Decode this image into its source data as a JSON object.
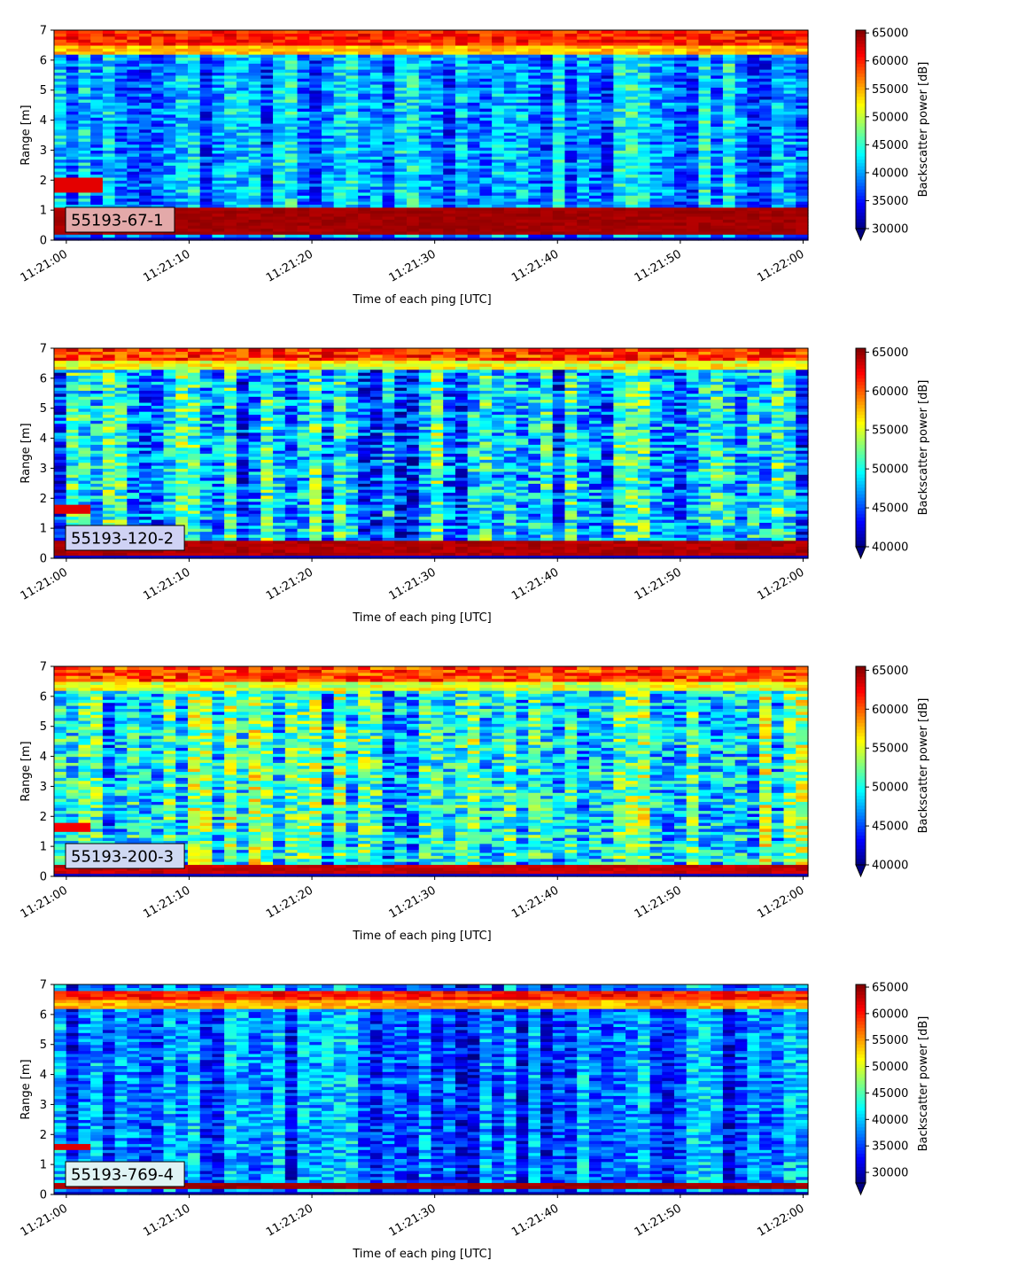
{
  "figure": {
    "title": ""
  },
  "chart_data": [
    {
      "type": "heatmap",
      "label": "55193-67-1",
      "label_color": "#e3a9a9",
      "xlabel": "Time of each ping [UTC]",
      "ylabel": "Range [m]",
      "xticks": [
        "11:21:00",
        "11:21:10",
        "11:21:20",
        "11:21:30",
        "11:21:40",
        "11:21:50",
        "11:22:00"
      ],
      "xlim": [
        "11:21:00",
        "11:22:00"
      ],
      "yticks": [
        0,
        1,
        2,
        3,
        4,
        5,
        6,
        7
      ],
      "ylim": [
        0,
        7
      ],
      "colorbar": {
        "label": "Backscatter power [dB]",
        "ticks": [
          30000,
          35000,
          40000,
          45000,
          50000,
          55000,
          60000,
          65000
        ],
        "min": 30000,
        "max": 65500,
        "extend": "min",
        "colormap": "jet"
      },
      "profile": {
        "background": 40000,
        "near_band": {
          "from": 0.2,
          "to": 1.1,
          "value": 65000
        },
        "far_band": {
          "from": 6.5,
          "to": 7.0,
          "value": 63000
        },
        "early_echo": {
          "from": 1.6,
          "to": 2.1,
          "value": 62000,
          "until": "11:21:02"
        }
      },
      "grid": false
    },
    {
      "type": "heatmap",
      "label": "55193-120-2",
      "label_color": "#cfd2f4",
      "xlabel": "Time of each ping [UTC]",
      "ylabel": "Range [m]",
      "xticks": [
        "11:21:00",
        "11:21:10",
        "11:21:20",
        "11:21:30",
        "11:21:40",
        "11:21:50",
        "11:22:00"
      ],
      "xlim": [
        "11:21:00",
        "11:22:00"
      ],
      "yticks": [
        0,
        1,
        2,
        3,
        4,
        5,
        6,
        7
      ],
      "ylim": [
        0,
        7
      ],
      "colorbar": {
        "label": "Backscatter power [dB]",
        "ticks": [
          40000,
          45000,
          50000,
          55000,
          60000,
          65000
        ],
        "min": 40000,
        "max": 65500,
        "extend": "min",
        "colormap": "jet"
      },
      "profile": {
        "background": 48000,
        "near_band": {
          "from": 0.1,
          "to": 0.55,
          "value": 65000
        },
        "far_band": {
          "from": 6.6,
          "to": 7.0,
          "value": 64000
        },
        "early_echo": {
          "from": 1.5,
          "to": 1.8,
          "value": 63000,
          "until": "11:21:01"
        }
      },
      "grid": false
    },
    {
      "type": "heatmap",
      "label": "55193-200-3",
      "label_color": "#cfd8f2",
      "xlabel": "Time of each ping [UTC]",
      "ylabel": "Range [m]",
      "xticks": [
        "11:21:00",
        "11:21:10",
        "11:21:20",
        "11:21:30",
        "11:21:40",
        "11:21:50",
        "11:22:00"
      ],
      "xlim": [
        "11:21:00",
        "11:22:00"
      ],
      "yticks": [
        0,
        1,
        2,
        3,
        4,
        5,
        6,
        7
      ],
      "ylim": [
        0,
        7
      ],
      "colorbar": {
        "label": "Backscatter power [dB]",
        "ticks": [
          40000,
          45000,
          50000,
          55000,
          60000,
          65000
        ],
        "min": 40000,
        "max": 65500,
        "extend": "min",
        "colormap": "jet"
      },
      "profile": {
        "background": 50000,
        "near_band": {
          "from": 0.15,
          "to": 0.4,
          "value": 64500
        },
        "far_band": {
          "from": 6.5,
          "to": 7.0,
          "value": 63500
        },
        "early_echo": {
          "from": 1.5,
          "to": 1.8,
          "value": 62500,
          "until": "11:21:01"
        }
      },
      "grid": false
    },
    {
      "type": "heatmap",
      "label": "55193-769-4",
      "label_color": "#dff3f4",
      "xlabel": "Time of each ping [UTC]",
      "ylabel": "Range [m]",
      "xticks": [
        "11:21:00",
        "11:21:10",
        "11:21:20",
        "11:21:30",
        "11:21:40",
        "11:21:50",
        "11:22:00"
      ],
      "xlim": [
        "11:21:00",
        "11:22:00"
      ],
      "yticks": [
        0,
        1,
        2,
        3,
        4,
        5,
        6,
        7
      ],
      "ylim": [
        0,
        7
      ],
      "colorbar": {
        "label": "Backscatter power [dB]",
        "ticks": [
          30000,
          35000,
          40000,
          45000,
          50000,
          55000,
          60000,
          65000
        ],
        "min": 28000,
        "max": 65500,
        "extend": "min",
        "colormap": "jet"
      },
      "profile": {
        "background": 36500,
        "near_band": {
          "from": 0.2,
          "to": 0.35,
          "value": 65000
        },
        "far_band": {
          "from": 6.5,
          "to": 6.75,
          "value": 63000
        },
        "early_echo": {
          "from": 1.5,
          "to": 1.7,
          "value": 62000,
          "until": "11:21:01"
        }
      },
      "grid": false
    }
  ]
}
